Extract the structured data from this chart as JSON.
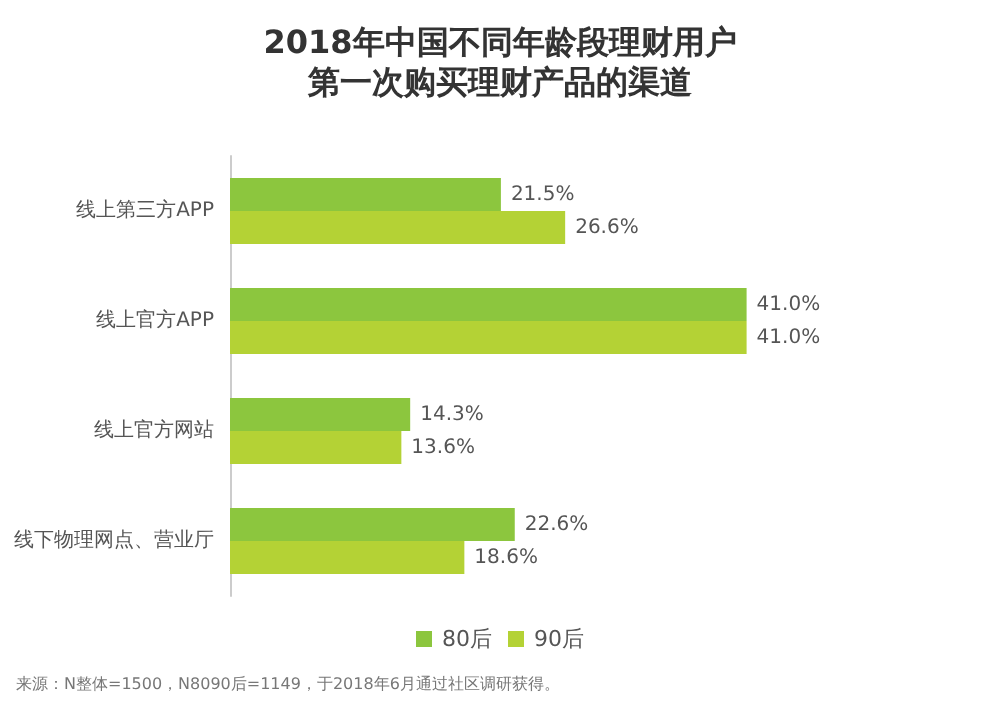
{
  "chart_data": {
    "type": "bar",
    "orientation": "horizontal",
    "title": "2018年中国不同年龄段理财用户",
    "subtitle": "第一次购买理财产品的渠道",
    "categories": [
      "线上第三方APP",
      "线上官方APP",
      "线上官方网站",
      "线下物理网点、营业厅"
    ],
    "series": [
      {
        "name": "80后",
        "color": "#8cc63e",
        "values": [
          21.5,
          41.0,
          14.3,
          22.6
        ],
        "value_labels": [
          "21.5%",
          "41.0%",
          "14.3%",
          "22.6%"
        ]
      },
      {
        "name": "90后",
        "color": "#b4d235",
        "values": [
          26.6,
          41.0,
          13.6,
          18.6
        ],
        "value_labels": [
          "26.6%",
          "41.0%",
          "13.6%",
          "18.6%"
        ]
      }
    ],
    "legend": "bottom",
    "tick_labels": "y",
    "annotations": [
      "来源：N整体=1500，N8090后=1149，于2018年6月通过社区调研获得。"
    ]
  }
}
